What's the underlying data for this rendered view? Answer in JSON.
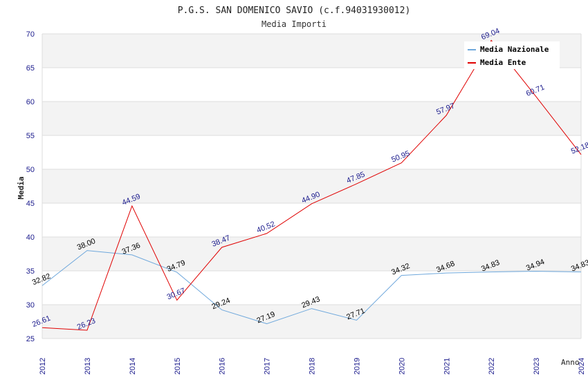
{
  "chart_data": {
    "type": "line",
    "title": "P.G.S. SAN DOMENICO SAVIO (c.f.94031930012)",
    "subtitle": "Media Importi",
    "xlabel": "Anno",
    "ylabel": "Media",
    "ylim": [
      25,
      70
    ],
    "yticks": [
      "25",
      "30",
      "35",
      "40",
      "45",
      "50",
      "55",
      "60",
      "65",
      "70"
    ],
    "categories": [
      "2012",
      "2013",
      "2014",
      "2015",
      "2016",
      "2017",
      "2018",
      "2019",
      "2020",
      "2021",
      "2022",
      "2023",
      "2024"
    ],
    "grid": "horizontal bands",
    "legend_position": "top-right",
    "series": [
      {
        "name": "Media Nazionale",
        "color": "#6fa8dc",
        "label_color": "#000000",
        "values": [
          32.82,
          38.0,
          37.36,
          34.79,
          29.24,
          27.19,
          29.43,
          27.71,
          34.32,
          34.68,
          34.83,
          34.94,
          34.83
        ],
        "labels": [
          "32.82",
          "38.00",
          "37.36",
          "34.79",
          "29.24",
          "27.19",
          "29.43",
          "27.71",
          "34.32",
          "34.68",
          "34.83",
          "34.94",
          "34.83"
        ]
      },
      {
        "name": "Media Ente",
        "color": "#e00000",
        "label_color": "#1a1a8c",
        "values": [
          26.61,
          26.23,
          44.59,
          30.67,
          38.47,
          40.52,
          44.9,
          47.85,
          50.95,
          57.97,
          69.04,
          60.71,
          52.18
        ],
        "labels": [
          "26.61",
          "26.23",
          "44.59",
          "30.67",
          "38.47",
          "40.52",
          "44.90",
          "47.85",
          "50.95",
          "57.97",
          "69.04",
          "60.71",
          "52.18"
        ]
      }
    ]
  }
}
